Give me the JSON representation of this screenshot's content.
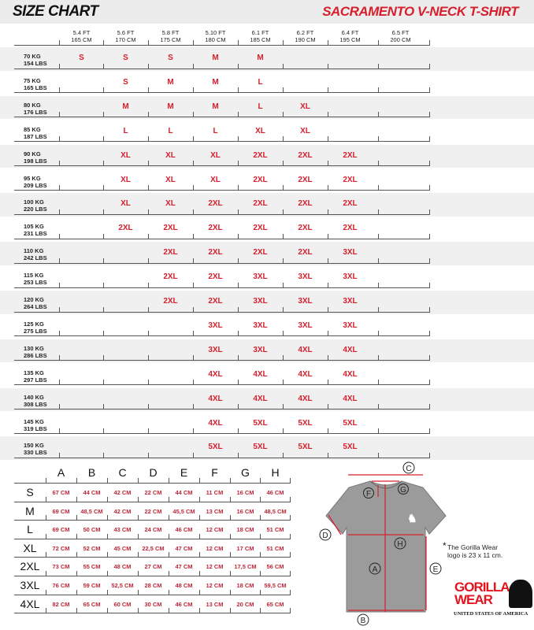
{
  "header": {
    "left_title": "SIZE CHART",
    "right_title": "SACRAMENTO V-NECK T-SHIRT"
  },
  "colors": {
    "accent": "#d6202e",
    "shirt": "#9b9b9b",
    "band": "#f0f0f0"
  },
  "heights": [
    {
      "ft": "5.4 FT",
      "cm": "165 CM"
    },
    {
      "ft": "5.6 FT",
      "cm": "170 CM"
    },
    {
      "ft": "5.8 FT",
      "cm": "175 CM"
    },
    {
      "ft": "5.10 FT",
      "cm": "180 CM"
    },
    {
      "ft": "6.1 FT",
      "cm": "185 CM"
    },
    {
      "ft": "6.2 FT",
      "cm": "190 CM"
    },
    {
      "ft": "6.4 FT",
      "cm": "195 CM"
    },
    {
      "ft": "6.5 FT",
      "cm": "200 CM"
    }
  ],
  "weights": [
    {
      "kg": "70 KG",
      "lbs": "154 LBS",
      "sizes": [
        "S",
        "S",
        "S",
        "M",
        "M",
        "",
        "",
        ""
      ]
    },
    {
      "kg": "75 KG",
      "lbs": "165 LBS",
      "sizes": [
        "",
        "S",
        "M",
        "M",
        "L",
        "",
        "",
        ""
      ]
    },
    {
      "kg": "80 KG",
      "lbs": "176 LBS",
      "sizes": [
        "",
        "M",
        "M",
        "M",
        "L",
        "XL",
        "",
        ""
      ]
    },
    {
      "kg": "85 KG",
      "lbs": "187 LBS",
      "sizes": [
        "",
        "L",
        "L",
        "L",
        "XL",
        "XL",
        "",
        ""
      ]
    },
    {
      "kg": "90 KG",
      "lbs": "198 LBS",
      "sizes": [
        "",
        "XL",
        "XL",
        "XL",
        "2XL",
        "2XL",
        "2XL",
        ""
      ]
    },
    {
      "kg": "95 KG",
      "lbs": "209 LBS",
      "sizes": [
        "",
        "XL",
        "XL",
        "XL",
        "2XL",
        "2XL",
        "2XL",
        ""
      ]
    },
    {
      "kg": "100 KG",
      "lbs": "220 LBS",
      "sizes": [
        "",
        "XL",
        "XL",
        "2XL",
        "2XL",
        "2XL",
        "2XL",
        ""
      ]
    },
    {
      "kg": "105 KG",
      "lbs": "231  LBS",
      "sizes": [
        "",
        "2XL",
        "2XL",
        "2XL",
        "2XL",
        "2XL",
        "2XL",
        ""
      ]
    },
    {
      "kg": "110 KG",
      "lbs": "242  LBS",
      "sizes": [
        "",
        "",
        "2XL",
        "2XL",
        "2XL",
        "2XL",
        "3XL",
        ""
      ]
    },
    {
      "kg": "115 KG",
      "lbs": "253 LBS",
      "sizes": [
        "",
        "",
        "2XL",
        "2XL",
        "3XL",
        "3XL",
        "3XL",
        ""
      ]
    },
    {
      "kg": "120 KG",
      "lbs": "264 LBS",
      "sizes": [
        "",
        "",
        "2XL",
        "2XL",
        "3XL",
        "3XL",
        "3XL",
        ""
      ]
    },
    {
      "kg": "125 KG",
      "lbs": "275 LBS",
      "sizes": [
        "",
        "",
        "",
        "3XL",
        "3XL",
        "3XL",
        "3XL",
        ""
      ]
    },
    {
      "kg": "130 KG",
      "lbs": "286 LBS",
      "sizes": [
        "",
        "",
        "",
        "3XL",
        "3XL",
        "4XL",
        "4XL",
        ""
      ]
    },
    {
      "kg": "135 KG",
      "lbs": "297 LBS",
      "sizes": [
        "",
        "",
        "",
        "4XL",
        "4XL",
        "4XL",
        "4XL",
        ""
      ]
    },
    {
      "kg": "140 KG",
      "lbs": "308 LBS",
      "sizes": [
        "",
        "",
        "",
        "4XL",
        "4XL",
        "4XL",
        "4XL",
        ""
      ]
    },
    {
      "kg": "145 KG",
      "lbs": "319 LBS",
      "sizes": [
        "",
        "",
        "",
        "4XL",
        "5XL",
        "5XL",
        "5XL",
        ""
      ]
    },
    {
      "kg": "150 KG",
      "lbs": "330 LBS",
      "sizes": [
        "",
        "",
        "",
        "5XL",
        "5XL",
        "5XL",
        "5XL",
        ""
      ]
    }
  ],
  "measurements": {
    "columns": [
      "A",
      "B",
      "C",
      "D",
      "E",
      "F",
      "G",
      "H"
    ],
    "rows": [
      {
        "size": "S",
        "values": [
          "67 CM",
          "44 CM",
          "42 CM",
          "22 CM",
          "44 CM",
          "11 CM",
          "16 CM",
          "46 CM"
        ]
      },
      {
        "size": "M",
        "values": [
          "69 CM",
          "48,5 CM",
          "42 CM",
          "22 CM",
          "45,5 CM",
          "13 CM",
          "16 CM",
          "48,5 CM"
        ]
      },
      {
        "size": "L",
        "values": [
          "69 CM",
          "50 CM",
          "43 CM",
          "24 CM",
          "46 CM",
          "12 CM",
          "18 CM",
          "51 CM"
        ]
      },
      {
        "size": "XL",
        "values": [
          "72 CM",
          "52 CM",
          "45 CM",
          "22,5 CM",
          "47 CM",
          "12 CM",
          "17 CM",
          "51 CM"
        ]
      },
      {
        "size": "2XL",
        "values": [
          "73 CM",
          "55 CM",
          "48 CM",
          "27 CM",
          "47 CM",
          "12 CM",
          "17,5 CM",
          "56 CM"
        ]
      },
      {
        "size": "3XL",
        "values": [
          "76 CM",
          "59 CM",
          "52,5 CM",
          "28 CM",
          "48 CM",
          "12 CM",
          "18 CM",
          "59,5 CM"
        ]
      },
      {
        "size": "4XL",
        "values": [
          "82 CM",
          "65 CM",
          "60 CM",
          "30 CM",
          "46 CM",
          "13 CM",
          "20 CM",
          "65 CM"
        ]
      }
    ]
  },
  "diagram": {
    "labels": {
      "A": "A",
      "B": "B",
      "C": "C",
      "D": "D",
      "E": "E",
      "F": "F",
      "G": "G",
      "H": "H"
    },
    "note_line1": "The Gorilla Wear",
    "note_line2": "logo is 23 x 11 cm.",
    "note_mark": "*"
  },
  "brand": {
    "logo_line1": "GORILLA",
    "logo_line2": "WEAR",
    "tagline": "UNITED STATES OF AMERICA"
  }
}
